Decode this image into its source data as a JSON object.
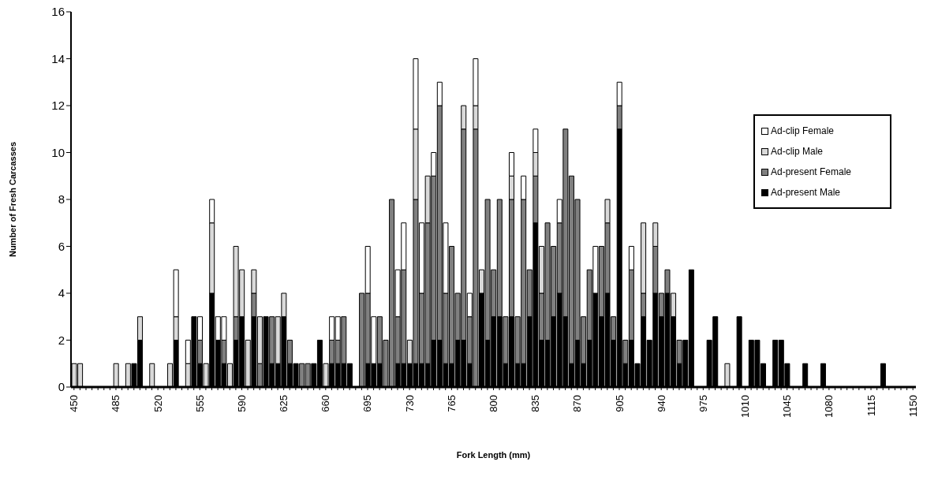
{
  "chart_data": {
    "type": "bar",
    "stacked": true,
    "xlabel": "Fork Length (mm)",
    "ylabel": "Number of Fresh Carcasses",
    "categories": [
      "450",
      null,
      null,
      null,
      null,
      null,
      null,
      "485",
      null,
      null,
      null,
      null,
      null,
      null,
      "520",
      null,
      null,
      null,
      null,
      null,
      null,
      "555",
      null,
      null,
      null,
      null,
      null,
      null,
      "590",
      null,
      null,
      null,
      null,
      null,
      null,
      "625",
      null,
      null,
      null,
      null,
      null,
      null,
      "660",
      null,
      null,
      null,
      null,
      null,
      null,
      "695",
      null,
      null,
      null,
      null,
      null,
      null,
      "730",
      null,
      null,
      null,
      null,
      null,
      null,
      "765",
      null,
      null,
      null,
      null,
      null,
      null,
      "800",
      null,
      null,
      null,
      null,
      null,
      null,
      "835",
      null,
      null,
      null,
      null,
      null,
      null,
      "870",
      null,
      null,
      null,
      null,
      null,
      null,
      "905",
      null,
      null,
      null,
      null,
      null,
      null,
      "940",
      null,
      null,
      null,
      null,
      null,
      null,
      "975",
      null,
      null,
      null,
      null,
      null,
      null,
      "1010",
      null,
      null,
      null,
      null,
      null,
      null,
      "1045",
      null,
      null,
      null,
      null,
      null,
      null,
      "1080",
      null,
      null,
      null,
      null,
      null,
      null,
      "1115",
      null,
      null,
      null,
      null,
      null,
      null,
      "1150"
    ],
    "series": [
      {
        "name": "Ad-present Male",
        "color": "#000000",
        "values": [
          0,
          0,
          0,
          0,
          0,
          0,
          0,
          0,
          0,
          0,
          1,
          2,
          0,
          0,
          0,
          0,
          0,
          2,
          0,
          0,
          3,
          1,
          0,
          4,
          2,
          1,
          0,
          2,
          3,
          0,
          3,
          0,
          3,
          1,
          1,
          3,
          1,
          1,
          0,
          0,
          1,
          2,
          0,
          1,
          1,
          1,
          1,
          0,
          0,
          1,
          1,
          1,
          0,
          0,
          1,
          1,
          1,
          1,
          1,
          1,
          2,
          2,
          1,
          1,
          2,
          2,
          1,
          0,
          4,
          2,
          3,
          3,
          1,
          3,
          1,
          1,
          3,
          7,
          2,
          2,
          3,
          4,
          3,
          1,
          2,
          1,
          2,
          4,
          3,
          4,
          2,
          11,
          1,
          2,
          1,
          3,
          2,
          4,
          3,
          4,
          3,
          1,
          2,
          5,
          0,
          0,
          2,
          3,
          0,
          0,
          0,
          3,
          0,
          2,
          2,
          1,
          0,
          2,
          2,
          1,
          0,
          0,
          1,
          0,
          0,
          1,
          0,
          0,
          0,
          0,
          0,
          0,
          0,
          0,
          0,
          1,
          0,
          0,
          0,
          0,
          0
        ]
      },
      {
        "name": "Ad-present Female",
        "color": "#808080",
        "values": [
          0,
          0,
          0,
          0,
          0,
          0,
          0,
          0,
          0,
          0,
          0,
          0,
          0,
          0,
          0,
          0,
          0,
          0,
          0,
          0,
          0,
          1,
          0,
          0,
          0,
          1,
          0,
          1,
          0,
          0,
          1,
          1,
          0,
          2,
          0,
          0,
          1,
          0,
          1,
          1,
          0,
          0,
          0,
          1,
          1,
          2,
          0,
          0,
          4,
          3,
          0,
          2,
          2,
          8,
          2,
          4,
          0,
          7,
          3,
          6,
          7,
          10,
          3,
          5,
          2,
          9,
          2,
          11,
          0,
          6,
          2,
          5,
          2,
          5,
          2,
          7,
          2,
          2,
          2,
          5,
          3,
          3,
          8,
          8,
          6,
          2,
          3,
          0,
          3,
          3,
          1,
          1,
          1,
          3,
          0,
          1,
          0,
          2,
          1,
          1,
          0,
          1,
          0,
          0,
          0,
          0,
          0,
          0,
          0,
          0,
          0,
          0,
          0,
          0,
          0,
          0,
          0,
          0,
          0,
          0,
          0,
          0,
          0,
          0,
          0,
          0,
          0,
          0,
          0,
          0,
          0,
          0,
          0,
          0,
          0,
          0,
          0,
          0,
          0,
          0,
          0
        ]
      },
      {
        "name": "Ad-clip Male",
        "color": "#d9d9d9",
        "values": [
          1,
          1,
          0,
          0,
          0,
          0,
          0,
          1,
          0,
          1,
          0,
          1,
          0,
          1,
          0,
          0,
          1,
          1,
          0,
          1,
          0,
          0,
          1,
          3,
          0,
          0,
          1,
          3,
          2,
          2,
          1,
          2,
          0,
          0,
          2,
          1,
          0,
          0,
          0,
          0,
          0,
          0,
          1,
          0,
          0,
          0,
          0,
          0,
          0,
          0,
          0,
          0,
          0,
          0,
          0,
          0,
          1,
          3,
          0,
          2,
          0,
          0,
          0,
          0,
          0,
          1,
          0,
          1,
          1,
          0,
          0,
          0,
          0,
          1,
          0,
          0,
          0,
          1,
          2,
          0,
          0,
          0,
          0,
          0,
          0,
          0,
          0,
          0,
          0,
          1,
          0,
          0,
          0,
          0,
          0,
          3,
          0,
          1,
          0,
          0,
          1,
          0,
          0,
          0,
          0,
          0,
          0,
          0,
          0,
          1,
          0,
          0,
          0,
          0,
          0,
          0,
          0,
          0,
          0,
          0,
          0,
          0,
          0,
          0,
          0,
          0,
          0,
          0,
          0,
          0,
          0,
          0,
          0,
          0,
          0,
          0,
          0,
          0,
          0,
          0,
          0
        ]
      },
      {
        "name": "Ad-clip Female",
        "color": "#ffffff",
        "values": [
          0,
          0,
          0,
          0,
          0,
          0,
          0,
          0,
          0,
          0,
          0,
          0,
          0,
          0,
          0,
          0,
          0,
          2,
          0,
          1,
          0,
          1,
          0,
          1,
          1,
          1,
          0,
          0,
          0,
          0,
          0,
          0,
          0,
          0,
          0,
          0,
          0,
          0,
          0,
          0,
          0,
          0,
          0,
          1,
          1,
          0,
          0,
          0,
          0,
          2,
          2,
          0,
          0,
          0,
          2,
          2,
          0,
          3,
          3,
          0,
          1,
          1,
          3,
          0,
          0,
          0,
          1,
          2,
          0,
          0,
          0,
          0,
          0,
          1,
          0,
          1,
          0,
          1,
          0,
          0,
          0,
          1,
          0,
          0,
          0,
          0,
          0,
          2,
          0,
          0,
          0,
          1,
          0,
          1,
          0,
          0,
          0,
          0,
          0,
          0,
          0,
          0,
          0,
          0,
          0,
          0,
          0,
          0,
          0,
          0,
          0,
          0,
          0,
          0,
          0,
          0,
          0,
          0,
          0,
          0,
          0,
          0,
          0,
          0,
          0,
          0,
          0,
          0,
          0,
          0,
          0,
          0,
          0,
          0,
          0,
          0,
          0,
          0,
          0,
          0,
          0
        ]
      }
    ],
    "ylim": [
      0,
      16
    ],
    "yticks": [
      0,
      2,
      4,
      6,
      8,
      10,
      12,
      14,
      16
    ],
    "legend": "right"
  }
}
